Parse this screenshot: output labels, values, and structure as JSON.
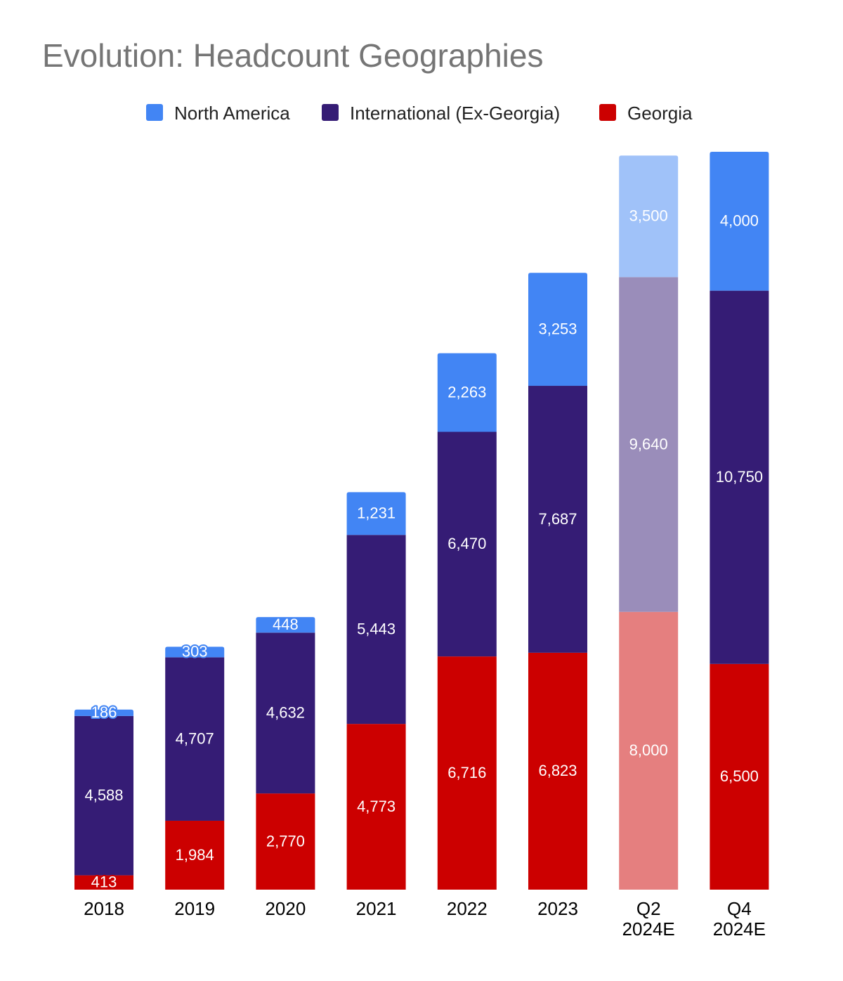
{
  "chart_data": {
    "type": "bar",
    "stacked": true,
    "title": "Evolution: Headcount Geographies",
    "categories": [
      "2018",
      "2019",
      "2020",
      "2021",
      "2022",
      "2023",
      "Q2\n2024E",
      "Q4\n2024E"
    ],
    "series": [
      {
        "name": "Georgia",
        "color": "#cc0000",
        "values": [
          413,
          1984,
          2770,
          4773,
          6716,
          6823,
          8000,
          6500
        ],
        "labels": [
          "413",
          "1,984",
          "2,770",
          "4,773",
          "6,716",
          "6,823",
          "8,000",
          "6,500"
        ]
      },
      {
        "name": "International (Ex-Georgia)",
        "color": "#351c75",
        "values": [
          4588,
          4707,
          4632,
          5443,
          6470,
          7687,
          9640,
          10750
        ],
        "labels": [
          "4,588",
          "4,707",
          "4,632",
          "5,443",
          "6,470",
          "7,687",
          "9,640",
          "10,750"
        ]
      },
      {
        "name": "North America",
        "color": "#4285f4",
        "values": [
          186,
          303,
          448,
          1231,
          2263,
          3253,
          3500,
          4000
        ],
        "labels": [
          "186",
          "303",
          "448",
          "1,231",
          "2,263",
          "3,253",
          "3,500",
          "4,000"
        ]
      }
    ],
    "legend": {
      "position": "top-center",
      "order": [
        "North America",
        "International (Ex-Georgia)",
        "Georgia"
      ]
    },
    "faded_categories": [
      "Q2\n2024E"
    ],
    "ylim": [
      0,
      21250
    ],
    "grid": false
  }
}
